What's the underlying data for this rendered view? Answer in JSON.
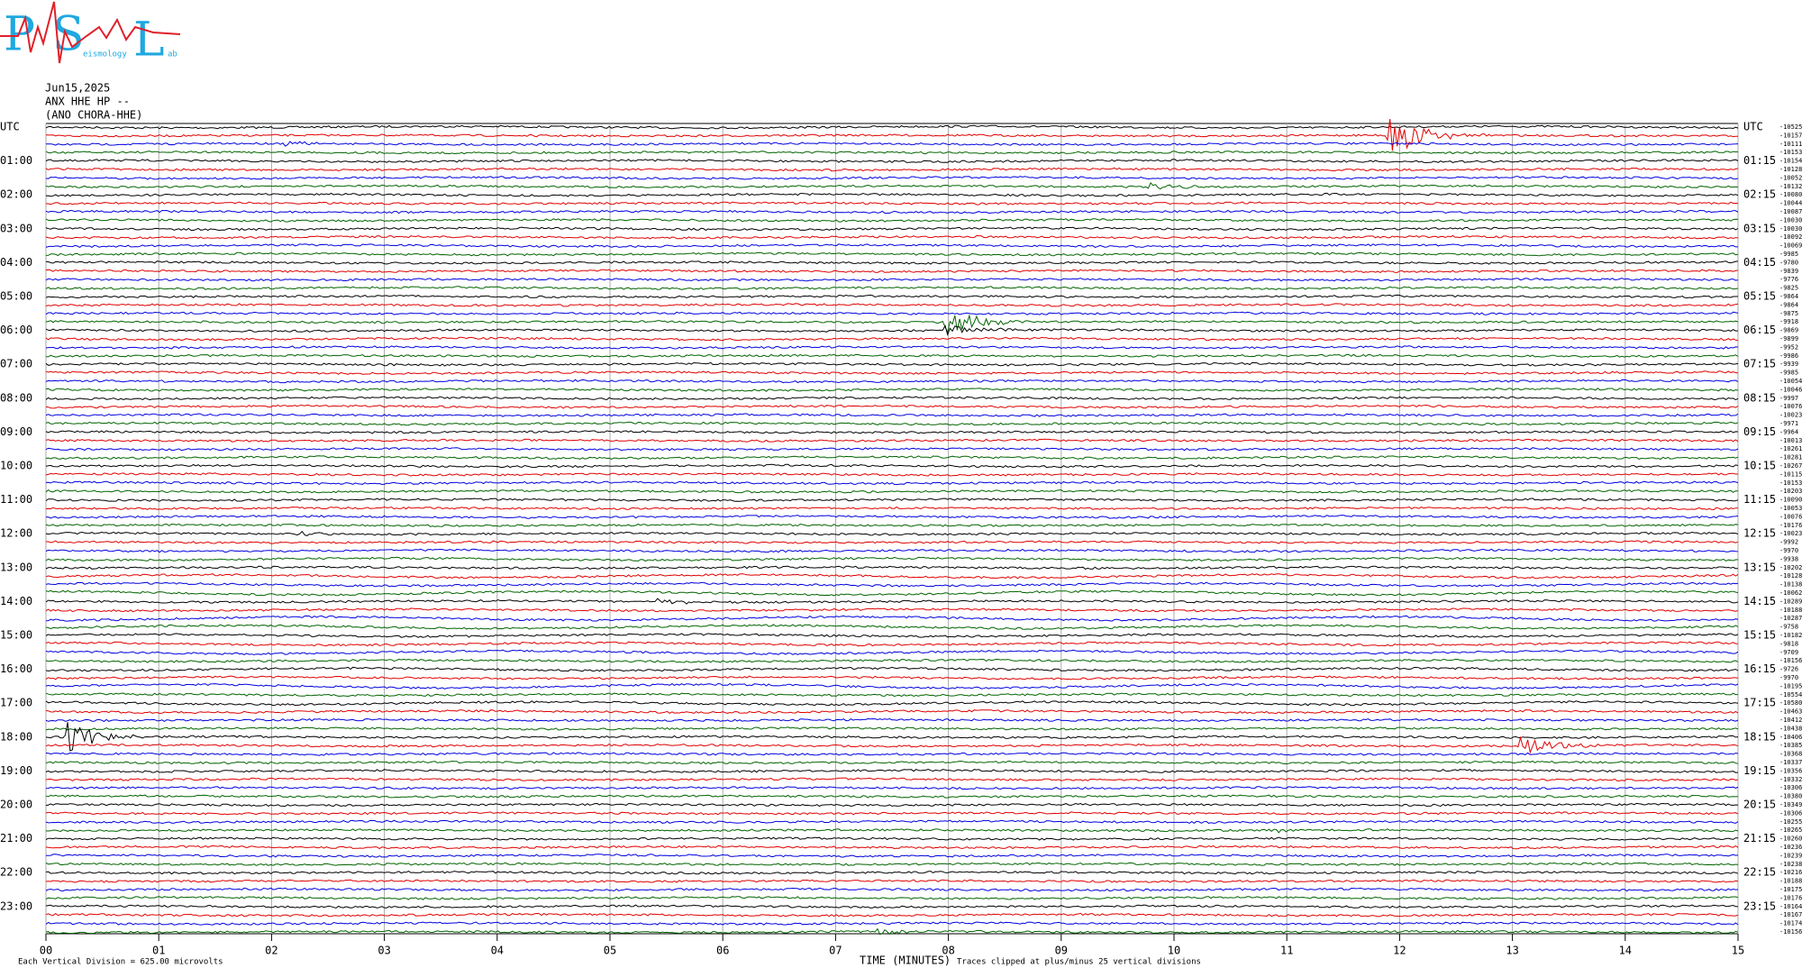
{
  "logo": {
    "letters": [
      "P",
      "S",
      "L"
    ],
    "small": [
      "eismology",
      "ab"
    ]
  },
  "header": {
    "date": "Jun15,2025",
    "channel": "ANX HHE HP --",
    "station": "(ANO CHORA-HHE)"
  },
  "left_labels": [
    "UTC",
    "01:00",
    "02:00",
    "03:00",
    "04:00",
    "05:00",
    "06:00",
    "07:00",
    "08:00",
    "09:00",
    "10:00",
    "11:00",
    "12:00",
    "13:00",
    "14:00",
    "15:00",
    "16:00",
    "17:00",
    "18:00",
    "19:00",
    "20:00",
    "21:00",
    "22:00",
    "23:00"
  ],
  "right_labels": [
    "UTC",
    "01:15",
    "02:15",
    "03:15",
    "04:15",
    "05:15",
    "06:15",
    "07:15",
    "08:15",
    "09:15",
    "10:15",
    "11:15",
    "12:15",
    "13:15",
    "14:15",
    "15:15",
    "16:15",
    "17:15",
    "18:15",
    "19:15",
    "20:15",
    "21:15",
    "22:15",
    "23:15"
  ],
  "offsets": [
    -10525,
    -10157,
    -10111,
    -10153,
    -10154,
    -10128,
    -10052,
    -10132,
    -10080,
    -10044,
    -10087,
    -10030,
    -10030,
    -10092,
    -10069,
    -9985,
    -9780,
    -9839,
    -9776,
    -9825,
    -9864,
    -9864,
    -9875,
    -9918,
    -9869,
    -9899,
    -9952,
    -9986,
    -9939,
    -9985,
    -10054,
    -10046,
    -9997,
    -10076,
    -10023,
    -9971,
    -9964,
    -10013,
    -10261,
    -10281,
    -10267,
    -10115,
    -10153,
    -10203,
    -10090,
    -10053,
    -10076,
    -10176,
    -10023,
    -9992,
    -9970,
    -9938,
    -10202,
    -10128,
    -10138,
    -10062,
    -10289,
    -10188,
    -10287,
    -9758,
    -10182,
    -9818,
    -9709,
    -10156,
    -9726,
    -9970,
    -10195,
    -10554,
    -10580,
    -10463,
    -10412,
    -10438,
    -10406,
    -10385,
    -10368,
    -10337,
    -10356,
    -10332,
    -10306,
    -10380,
    -10349,
    -10306,
    -10255,
    -10265,
    -10260,
    -10236,
    -10239,
    -10238,
    -10216,
    -10188,
    -10175,
    -10176,
    -10164,
    -10167,
    -10174,
    -10156
  ],
  "x_ticks": [
    "00",
    "01",
    "02",
    "03",
    "04",
    "05",
    "06",
    "07",
    "08",
    "09",
    "10",
    "11",
    "12",
    "13",
    "14",
    "15"
  ],
  "footer": {
    "axis_title": "TIME (MINUTES)",
    "scale": "Each Vertical Division =  625.00 microvolts",
    "clip": "Traces clipped at plus/minus 25 vertical divisions"
  }
}
